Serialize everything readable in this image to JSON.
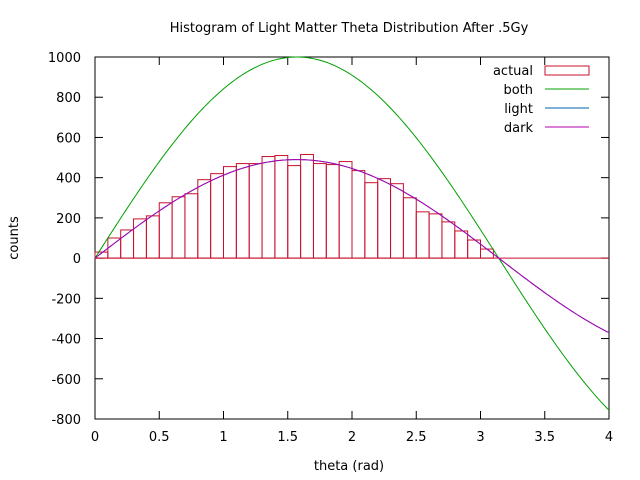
{
  "chart_data": {
    "type": "bar",
    "title": "Histogram of Light Matter Theta Distribution After .5Gy",
    "xlabel": "theta (rad)",
    "ylabel": "counts",
    "xlim": [
      0,
      4
    ],
    "ylim": [
      -800,
      1000
    ],
    "xticks": [
      "0",
      "0.5",
      "1",
      "1.5",
      "2",
      "2.5",
      "3",
      "3.5",
      "4"
    ],
    "yticks": [
      "-800",
      "-600",
      "-400",
      "-200",
      "0",
      "200",
      "400",
      "600",
      "800",
      "1000"
    ],
    "grid": false,
    "legend_position": "top-right",
    "bin_width": 0.1,
    "series": [
      {
        "name": "actual",
        "kind": "histogram",
        "color": "#c8102e",
        "bin_starts": [
          0.0,
          0.1,
          0.2,
          0.3,
          0.4,
          0.5,
          0.6,
          0.7,
          0.8,
          0.9,
          1.0,
          1.1,
          1.2,
          1.3,
          1.4,
          1.5,
          1.6,
          1.7,
          1.8,
          1.9,
          2.0,
          2.1,
          2.2,
          2.3,
          2.4,
          2.5,
          2.6,
          2.7,
          2.8,
          2.9,
          3.0,
          3.1
        ],
        "values": [
          30,
          100,
          140,
          195,
          210,
          275,
          305,
          320,
          390,
          420,
          455,
          470,
          470,
          505,
          510,
          460,
          515,
          470,
          465,
          480,
          435,
          375,
          395,
          370,
          300,
          230,
          220,
          180,
          135,
          90,
          45,
          0
        ]
      },
      {
        "name": "both",
        "kind": "line",
        "color": "#00a000",
        "formula": "1000*sin(x)",
        "x_range": [
          0,
          4
        ]
      },
      {
        "name": "light",
        "kind": "line",
        "color": "#0060ad",
        "formula": "490*sin(x)",
        "x_range": [
          0,
          4
        ]
      },
      {
        "name": "dark",
        "kind": "line",
        "color": "#b000b0",
        "formula": "490*sin(x)",
        "x_range": [
          0,
          4
        ]
      }
    ]
  }
}
